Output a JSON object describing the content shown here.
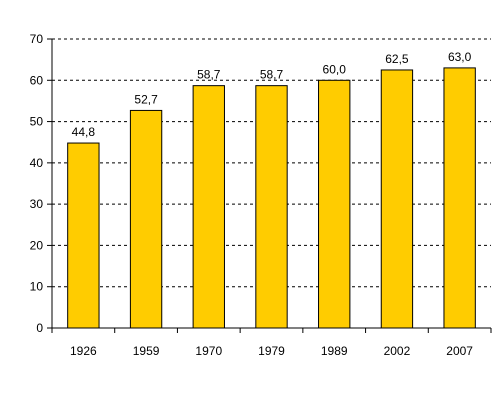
{
  "chart_data": {
    "type": "bar",
    "categories": [
      "1926",
      "1959",
      "1970",
      "1979",
      "1989",
      "2002",
      "2007"
    ],
    "values": [
      44.8,
      52.7,
      58.7,
      58.7,
      60.0,
      62.5,
      63.0
    ],
    "value_labels": [
      "44,8",
      "52,7",
      "58,7",
      "58,7",
      "60,0",
      "62,5",
      "63,0"
    ],
    "title": "",
    "xlabel": "",
    "ylabel": "",
    "ylim": [
      0,
      70
    ],
    "yticks": [
      "0",
      "10",
      "20",
      "30",
      "40",
      "50",
      "60",
      "70"
    ],
    "grid": true,
    "grid_style": "dashed",
    "legend": "none",
    "bar_color": "#FFCC00",
    "bar_edge_color": "#000000"
  }
}
